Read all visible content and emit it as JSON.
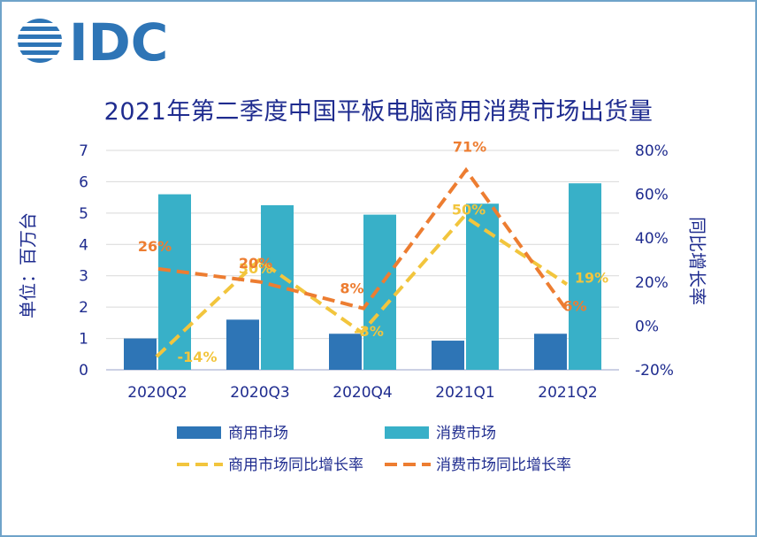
{
  "logo_text": "IDC",
  "chart_data": {
    "type": "bar",
    "title": "2021年第二季度中国平板电脑商用消费市场出货量",
    "ylabel": "单位：百万台",
    "y2label": "同比增长率",
    "categories": [
      "2020Q2",
      "2020Q3",
      "2020Q4",
      "2021Q1",
      "2021Q2"
    ],
    "ylim": [
      0,
      7
    ],
    "yticks": [
      "0",
      "1",
      "2",
      "3",
      "4",
      "5",
      "6",
      "7"
    ],
    "y2lim": [
      -20,
      80
    ],
    "y2ticks": [
      "-20%",
      "0%",
      "20%",
      "40%",
      "60%",
      "80%"
    ],
    "bar_series": [
      {
        "name": "商用市场",
        "color": "#2e75b6",
        "values": [
          1.0,
          1.6,
          1.15,
          0.93,
          1.15
        ]
      },
      {
        "name": "消费市场",
        "color": "#38b0c8",
        "values": [
          5.6,
          5.25,
          4.95,
          5.3,
          5.95
        ]
      }
    ],
    "line_series": [
      {
        "name": "商用市场同比增长率",
        "color": "#f2c53d",
        "values": [
          -14,
          30,
          -3,
          50,
          19
        ],
        "labels": [
          "-14%",
          "30%",
          "-3%",
          "50%",
          "19%"
        ]
      },
      {
        "name": "消费市场同比增长率",
        "color": "#ed7d31",
        "values": [
          26,
          20,
          8,
          71,
          6
        ],
        "labels": [
          "26%",
          "20%",
          "8%",
          "71%",
          "6%"
        ]
      }
    ],
    "grid": true,
    "legend_position": "bottom"
  }
}
